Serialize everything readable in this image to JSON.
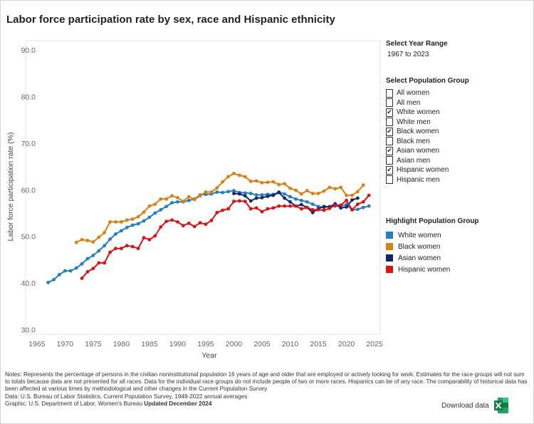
{
  "title": "Labor force participation rate by sex, race and Hispanic ethnicity",
  "panel": {
    "year_range_label": "Select Year Range",
    "year_range_value": "1967 to 2023",
    "group_label": "Select Population Group",
    "groups": [
      {
        "label": "All women",
        "checked": false
      },
      {
        "label": "All men",
        "checked": false
      },
      {
        "label": "White women",
        "checked": true
      },
      {
        "label": "White men",
        "checked": false
      },
      {
        "label": "Black women",
        "checked": true
      },
      {
        "label": "Black men",
        "checked": false
      },
      {
        "label": "Asian women",
        "checked": true
      },
      {
        "label": "Asian men",
        "checked": false
      },
      {
        "label": "Hispanic women",
        "checked": true
      },
      {
        "label": "Hispanic men",
        "checked": false
      }
    ],
    "highlight_label": "Highlight Population Group",
    "highlights": [
      {
        "label": "White women",
        "color": "#1f7ec8"
      },
      {
        "label": "Black women",
        "color": "#dd7f0f"
      },
      {
        "label": "Asian women",
        "color": "#152470"
      },
      {
        "label": "Hispanic women",
        "color": "#dd1111"
      }
    ]
  },
  "chart_data": {
    "type": "line",
    "title": "Labor force participation rate by sex, race and Hispanic ethnicity",
    "xlabel": "Year",
    "ylabel": "Labor force participation rate (%)",
    "xlim": [
      1963,
      2026
    ],
    "ylim": [
      29,
      92
    ],
    "xticks": [
      1965,
      1970,
      1975,
      1980,
      1985,
      1990,
      1995,
      2000,
      2005,
      2010,
      2015,
      2020,
      2025
    ],
    "yticks": [
      30,
      40,
      50,
      60,
      70,
      80,
      90
    ],
    "ytick_labels": [
      "30.0",
      "40.0",
      "50.0",
      "60.0",
      "70.0",
      "80.0",
      "90.0"
    ],
    "series": [
      {
        "name": "White women",
        "color": "#1f7ec8",
        "start": 1967,
        "values": [
          40.1,
          40.7,
          41.8,
          42.6,
          42.6,
          43.2,
          44.1,
          45.2,
          45.9,
          46.9,
          48.0,
          49.4,
          50.5,
          51.2,
          51.9,
          52.4,
          52.7,
          53.3,
          54.1,
          55.0,
          55.7,
          56.4,
          57.2,
          57.4,
          57.4,
          57.7,
          58.0,
          58.9,
          59.0,
          59.1,
          59.5,
          59.4,
          59.6,
          59.8,
          59.4,
          59.3,
          59.2,
          58.9,
          58.9,
          59.0,
          59.0,
          59.5,
          59.1,
          58.5,
          58.0,
          57.7,
          57.4,
          56.9,
          56.4,
          56.2,
          56.4,
          56.5,
          56.5,
          56.8,
          55.7,
          55.8,
          56.2,
          56.5
        ]
      },
      {
        "name": "Black women",
        "color": "#dd7f0f",
        "start": 1972,
        "values": [
          48.7,
          49.3,
          49.1,
          48.8,
          49.8,
          50.8,
          53.1,
          53.1,
          53.1,
          53.5,
          53.7,
          54.2,
          55.2,
          56.5,
          56.9,
          58.0,
          58.0,
          58.7,
          58.3,
          57.5,
          58.5,
          57.9,
          58.7,
          59.5,
          59.5,
          60.4,
          61.7,
          62.8,
          63.5,
          63.1,
          62.8,
          61.8,
          61.9,
          61.5,
          61.6,
          61.7,
          61.1,
          61.3,
          60.3,
          59.9,
          59.1,
          59.8,
          59.2,
          59.2,
          59.7,
          60.5,
          60.2,
          60.5,
          58.8,
          58.8,
          59.6,
          61.0
        ]
      },
      {
        "name": "Asian women",
        "color": "#152470",
        "start": 2000,
        "values": [
          59.2,
          59.1,
          58.7,
          57.6,
          58.2,
          58.3,
          58.6,
          58.8,
          59.4,
          58.2,
          57.4,
          56.5,
          56.8,
          56.2,
          55.1,
          55.9,
          56.4,
          56.3,
          57.0,
          56.1,
          56.3,
          57.8,
          58.2
        ]
      },
      {
        "name": "Hispanic women",
        "color": "#dd1111",
        "start": 1973,
        "values": [
          41.0,
          42.4,
          43.1,
          44.3,
          44.3,
          46.6,
          47.4,
          47.4,
          48.0,
          47.8,
          47.4,
          49.7,
          49.3,
          50.1,
          52.0,
          53.2,
          53.5,
          53.1,
          52.3,
          52.8,
          52.1,
          52.9,
          52.6,
          53.4,
          55.1,
          55.6,
          55.9,
          57.5,
          57.6,
          57.5,
          55.9,
          56.1,
          55.3,
          55.9,
          56.1,
          56.5,
          56.5,
          56.5,
          56.5,
          55.9,
          56.2,
          55.7,
          55.7,
          55.6,
          56.0,
          56.7,
          56.7,
          57.7,
          55.7,
          56.9,
          57.4,
          58.8
        ]
      }
    ]
  },
  "notes": {
    "text": "Notes: Represents the percentage of persons in the civilian noninstitutional population 16 years of age and older that are employed or actively looking for work. Estimates for the race groups will not sum to totals because data are not presented for all races. Data for the individual race groups do not include people of two or more races. Hispanics can be of any race. The comparability of historical data has been affected at various times by methodological and other changes in the Current Population Survey.",
    "data_source": "Data: U.S. Bureau of Labor Statistics,  Current Population Survey, 1948-2022 annual averages",
    "graphic": "Graphic: U.S. Department of Labor, Women's Bureau ",
    "updated": "Updated December 2024"
  },
  "download_label": "Download data",
  "icons": {
    "excel": "excel-icon",
    "check": "check-icon"
  }
}
